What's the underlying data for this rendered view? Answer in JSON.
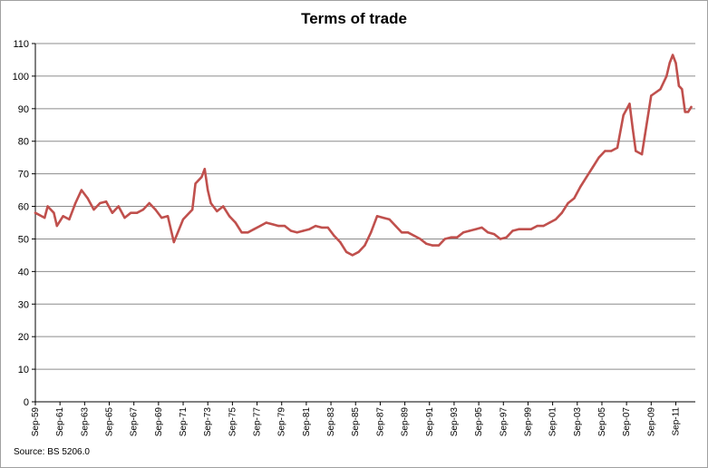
{
  "chart_data": {
    "type": "line",
    "title": "Terms of trade",
    "xlabel": "",
    "ylabel": "",
    "ylim": [
      0,
      110
    ],
    "yticks": [
      0,
      10,
      20,
      30,
      40,
      50,
      60,
      70,
      80,
      90,
      100,
      110
    ],
    "grid": "horizontal",
    "legend": "none",
    "line_color": "#c0504d",
    "xtick_labels": [
      "Sep-59",
      "Sep-61",
      "Sep-63",
      "Sep-65",
      "Sep-67",
      "Sep-69",
      "Sep-71",
      "Sep-73",
      "Sep-75",
      "Sep-77",
      "Sep-79",
      "Sep-81",
      "Sep-83",
      "Sep-85",
      "Sep-87",
      "Sep-89",
      "Sep-91",
      "Sep-93",
      "Sep-95",
      "Sep-97",
      "Sep-99",
      "Sep-01",
      "Sep-03",
      "Sep-05",
      "Sep-07",
      "Sep-09",
      "Sep-11"
    ],
    "x_start": "Sep-59",
    "x_end": "Mar-13",
    "series": [
      {
        "x": [
          "Sep-59",
          "Jun-60",
          "Sep-60",
          "Mar-61",
          "Jun-61",
          "Dec-61",
          "Jun-62",
          "Dec-62",
          "Jun-63",
          "Dec-63",
          "Jun-64",
          "Dec-64",
          "Jun-65",
          "Dec-65",
          "Jun-66",
          "Dec-66",
          "Jun-67",
          "Dec-67",
          "Jun-68",
          "Dec-68",
          "Jun-69",
          "Dec-69",
          "Jun-70",
          "Dec-70",
          "Sep-71",
          "Jun-72",
          "Sep-72",
          "Mar-73",
          "Jun-73",
          "Sep-73",
          "Dec-73",
          "Jun-74",
          "Dec-74",
          "Jun-75",
          "Dec-75",
          "Jun-76",
          "Dec-76",
          "Jun-77",
          "Dec-77",
          "Jun-78",
          "Dec-78",
          "Jun-79",
          "Dec-79",
          "Jun-80",
          "Dec-80",
          "Jun-81",
          "Dec-81",
          "Jun-82",
          "Dec-82",
          "Jun-83",
          "Dec-83",
          "Jun-84",
          "Dec-84",
          "Jun-85",
          "Dec-85",
          "Jun-86",
          "Dec-86",
          "Jun-87",
          "Dec-87",
          "Jun-88",
          "Dec-88",
          "Jun-89",
          "Dec-89",
          "Jun-90",
          "Dec-90",
          "Jun-91",
          "Dec-91",
          "Jun-92",
          "Dec-92",
          "Jun-93",
          "Dec-93",
          "Jun-94",
          "Dec-94",
          "Jun-95",
          "Dec-95",
          "Jun-96",
          "Dec-96",
          "Jun-97",
          "Dec-97",
          "Jun-98",
          "Dec-98",
          "Jun-99",
          "Dec-99",
          "Jun-00",
          "Dec-00",
          "Jun-01",
          "Dec-01",
          "Jun-02",
          "Dec-02",
          "Jun-03",
          "Dec-03",
          "Jun-04",
          "Dec-04",
          "Jun-05",
          "Dec-05",
          "Jun-06",
          "Dec-06",
          "Jun-07",
          "Dec-07",
          "Mar-08",
          "Jun-08",
          "Dec-08",
          "Mar-09",
          "Sep-09",
          "Jun-10",
          "Dec-10",
          "Mar-11",
          "Jun-11",
          "Sep-11",
          "Dec-11",
          "Mar-12",
          "Jun-12",
          "Sep-12",
          "Dec-12"
        ],
        "values": [
          58,
          56.5,
          60,
          58,
          54,
          57,
          56,
          61,
          65,
          62.5,
          59,
          61,
          61.5,
          58,
          60,
          56.5,
          58,
          58,
          59,
          61,
          59,
          56.5,
          57,
          49,
          56,
          59,
          67,
          69,
          71.5,
          65,
          61,
          58.5,
          60,
          57,
          55,
          52,
          52,
          53,
          54,
          55,
          54.5,
          54,
          54,
          52.5,
          52,
          52.5,
          53,
          54,
          53.5,
          53.5,
          51,
          49,
          46,
          45,
          46,
          48,
          52,
          57,
          56.5,
          56,
          54,
          52,
          52,
          51,
          50,
          48.5,
          48,
          48,
          50,
          50.5,
          50.5,
          52,
          52.5,
          53,
          53.5,
          52,
          51.5,
          50,
          50.5,
          52.5,
          53,
          53,
          53,
          54,
          54,
          55,
          56,
          58,
          61,
          62.5,
          66,
          69,
          72,
          75,
          77,
          77,
          78,
          88,
          91.5,
          84,
          77,
          76,
          82,
          94,
          96,
          100,
          104,
          106.5,
          104,
          97,
          96,
          89,
          89,
          90.5
        ]
      }
    ]
  },
  "source_note": "Source: BS 5206.0"
}
